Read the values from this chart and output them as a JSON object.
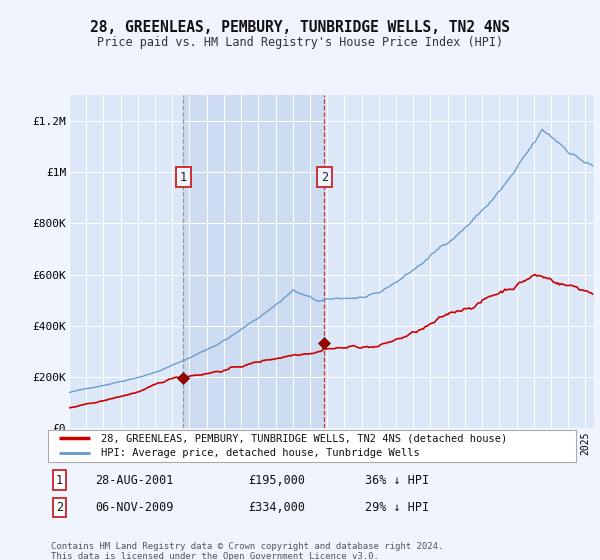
{
  "title": "28, GREENLEAS, PEMBURY, TUNBRIDGE WELLS, TN2 4NS",
  "subtitle": "Price paid vs. HM Land Registry's House Price Index (HPI)",
  "bg_color": "#f0f4ff",
  "plot_bg_color": "#dce8f8",
  "legend_entry1": "28, GREENLEAS, PEMBURY, TUNBRIDGE WELLS, TN2 4NS (detached house)",
  "legend_entry2": "HPI: Average price, detached house, Tunbridge Wells",
  "transaction1_date": "28-AUG-2001",
  "transaction1_price": "£195,000",
  "transaction1_hpi": "36% ↓ HPI",
  "transaction2_date": "06-NOV-2009",
  "transaction2_price": "£334,000",
  "transaction2_hpi": "29% ↓ HPI",
  "vline1_x": 2001.65,
  "vline2_x": 2009.84,
  "marker1_x": 2001.65,
  "marker1_y": 195000,
  "marker2_x": 2009.84,
  "marker2_y": 334000,
  "ylabel_ticks": [
    "£0",
    "£200K",
    "£400K",
    "£600K",
    "£800K",
    "£1M",
    "£1.2M"
  ],
  "ytick_vals": [
    0,
    200000,
    400000,
    600000,
    800000,
    1000000,
    1200000
  ],
  "ylim": [
    0,
    1300000
  ],
  "xlim_start": 1995,
  "xlim_end": 2025.5,
  "footer": "Contains HM Land Registry data © Crown copyright and database right 2024.\nThis data is licensed under the Open Government Licence v3.0.",
  "red_line_color": "#cc0000",
  "blue_line_color": "#6699cc",
  "shade_color": "#c8d8ef"
}
